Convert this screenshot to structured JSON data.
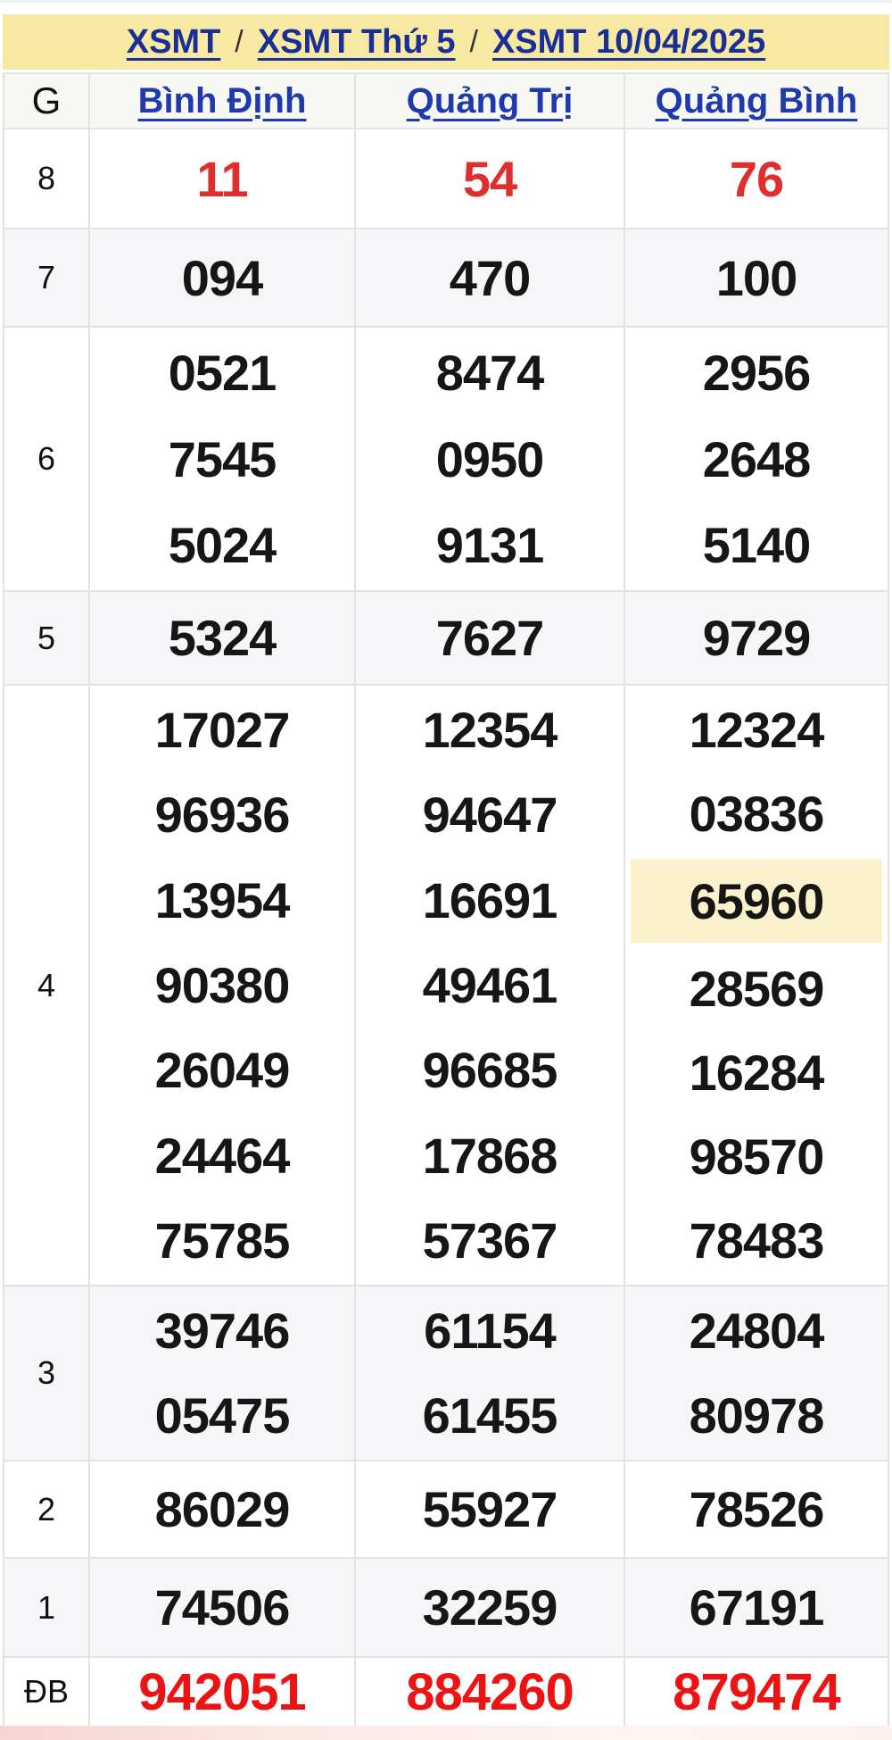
{
  "breadcrumb": {
    "separator": "/",
    "items": [
      {
        "label": "XSMT"
      },
      {
        "label": "XSMT Thứ 5"
      },
      {
        "label": "XSMT 10/04/2025"
      }
    ]
  },
  "table": {
    "corner_label": "G",
    "columns": [
      {
        "label": "Bình Định"
      },
      {
        "label": "Quảng Trị"
      },
      {
        "label": "Quảng Bình"
      }
    ],
    "highlight": {
      "row_index": 4,
      "col_index": 2,
      "line_index": 2
    },
    "rows": [
      {
        "label": "8",
        "style": "red",
        "cells": [
          [
            "11"
          ],
          [
            "54"
          ],
          [
            "76"
          ]
        ]
      },
      {
        "label": "7",
        "style": "normal",
        "cells": [
          [
            "094"
          ],
          [
            "470"
          ],
          [
            "100"
          ]
        ]
      },
      {
        "label": "6",
        "style": "normal",
        "cells": [
          [
            "0521",
            "7545",
            "5024"
          ],
          [
            "8474",
            "0950",
            "9131"
          ],
          [
            "2956",
            "2648",
            "5140"
          ]
        ]
      },
      {
        "label": "5",
        "style": "normal",
        "cells": [
          [
            "5324"
          ],
          [
            "7627"
          ],
          [
            "9729"
          ]
        ]
      },
      {
        "label": "4",
        "style": "normal",
        "cells": [
          [
            "17027",
            "96936",
            "13954",
            "90380",
            "26049",
            "24464",
            "75785"
          ],
          [
            "12354",
            "94647",
            "16691",
            "49461",
            "96685",
            "17868",
            "57367"
          ],
          [
            "12324",
            "03836",
            "65960",
            "28569",
            "16284",
            "98570",
            "78483"
          ]
        ]
      },
      {
        "label": "3",
        "style": "normal",
        "cells": [
          [
            "39746",
            "05475"
          ],
          [
            "61154",
            "61455"
          ],
          [
            "24804",
            "80978"
          ]
        ]
      },
      {
        "label": "2",
        "style": "normal",
        "cells": [
          [
            "86029"
          ],
          [
            "55927"
          ],
          [
            "78526"
          ]
        ]
      },
      {
        "label": "1",
        "style": "normal",
        "cells": [
          [
            "74506"
          ],
          [
            "32259"
          ],
          [
            "67191"
          ]
        ]
      },
      {
        "label": "ĐB",
        "style": "red-db",
        "cells": [
          [
            "942051"
          ],
          [
            "884260"
          ],
          [
            "879474"
          ]
        ]
      }
    ]
  },
  "colors": {
    "breadcrumb_band": "#F8E9A2",
    "breadcrumb_link": "#1A2F96",
    "column_link": "#1E3AAE",
    "number_black": "#161616",
    "prize8_red": "#DE2F2F",
    "db_red": "#EE1313",
    "highlight_bg": "#FBF2CD",
    "stripe_bg": "#F6F6F8",
    "border": "#E2E2E2"
  }
}
